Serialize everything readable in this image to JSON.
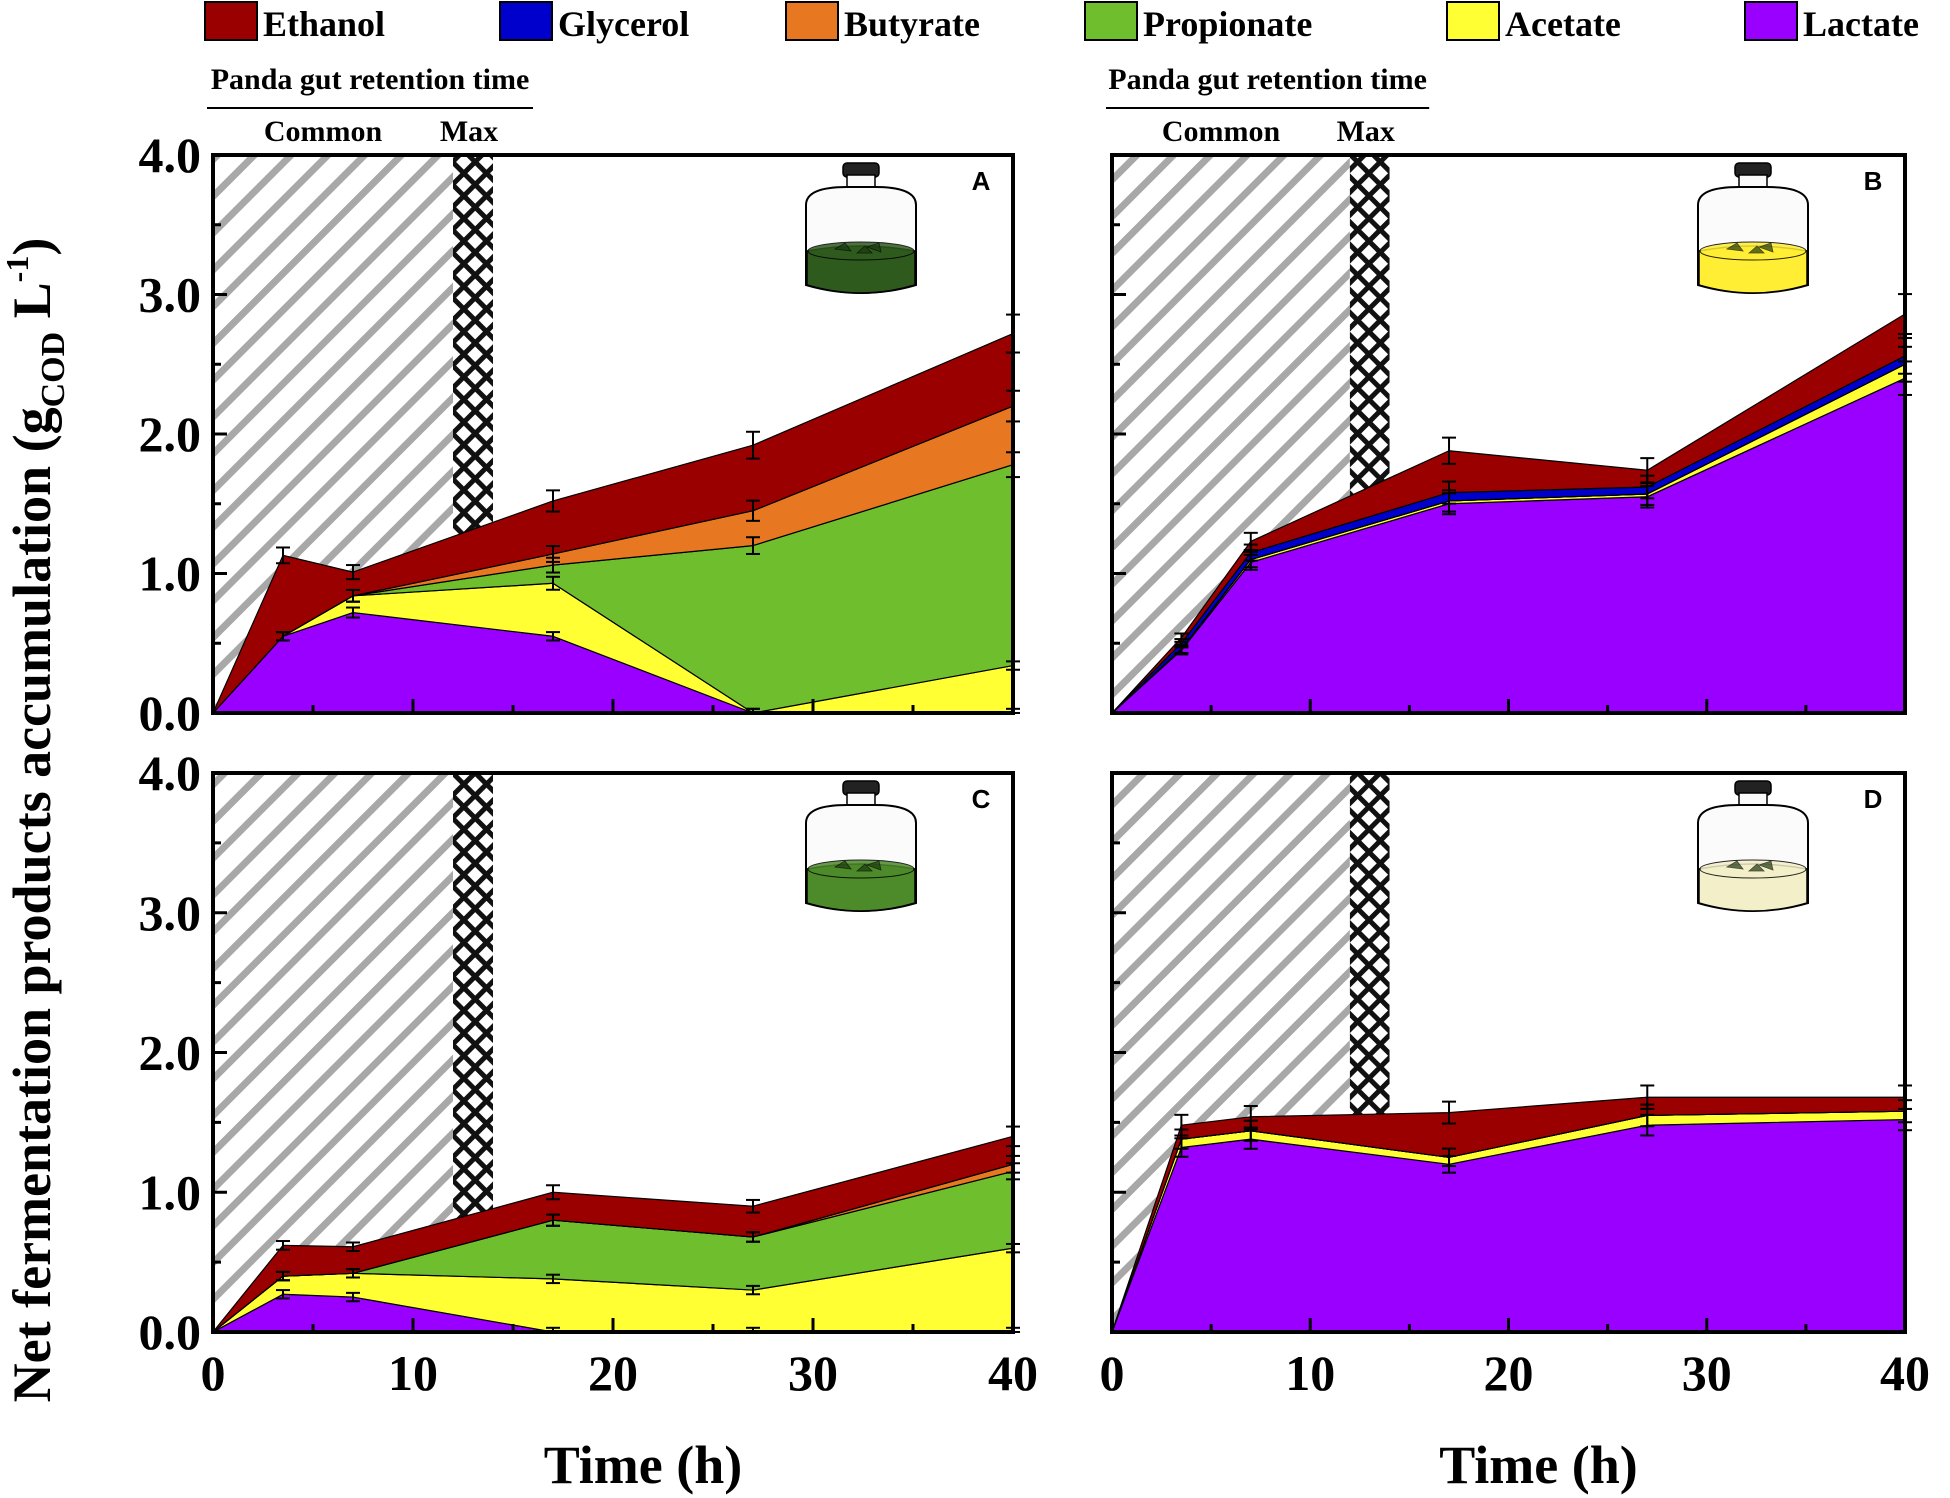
{
  "chart_data": {
    "type": "area",
    "stacked": true,
    "ylabel_main": "Net fermentation products accumulation (g",
    "ylabel_sub": "COD",
    "ylabel_unit": " L",
    "ylabel_sup": "-1",
    "ylabel_close": ")",
    "xlabel": "Time (h)",
    "xlim": [
      0,
      40
    ],
    "ylim": [
      0,
      4
    ],
    "x_ticks": [
      "0",
      "10",
      "20",
      "30",
      "40"
    ],
    "y_ticks": [
      "0.0",
      "1.0",
      "2.0",
      "3.0",
      "4.0"
    ],
    "retention": {
      "title": "Panda gut retention  time",
      "common_label": "Common",
      "max_label": "Max",
      "common_range": [
        0,
        12
      ],
      "max_range": [
        12,
        14
      ]
    },
    "x": [
      0,
      3.5,
      7,
      17,
      27,
      40
    ],
    "legend": [
      {
        "name": "Ethanol",
        "color": "#9b0000"
      },
      {
        "name": "Glycerol",
        "color": "#0000cc"
      },
      {
        "name": "Butyrate",
        "color": "#e87722"
      },
      {
        "name": "Propionate",
        "color": "#6fbe2e"
      },
      {
        "name": "Acetate",
        "color": "#ffff33"
      },
      {
        "name": "Lactate",
        "color": "#9900ff"
      }
    ],
    "panels": [
      {
        "label": "A",
        "jar_color": "#2e5a1e",
        "series": [
          {
            "name": "Lactate",
            "values": [
              0,
              0.55,
              0.72,
              0.55,
              0.0,
              0.0
            ]
          },
          {
            "name": "Acetate",
            "values": [
              0,
              0.0,
              0.12,
              0.38,
              0.0,
              0.34
            ]
          },
          {
            "name": "Propionate",
            "values": [
              0,
              0.0,
              0.0,
              0.13,
              1.2,
              1.44
            ]
          },
          {
            "name": "Butyrate",
            "values": [
              0,
              0.0,
              0.0,
              0.08,
              0.25,
              0.42
            ]
          },
          {
            "name": "Glycerol",
            "values": [
              0,
              0.0,
              0.0,
              0.0,
              0.0,
              0.0
            ]
          },
          {
            "name": "Ethanol",
            "values": [
              0,
              0.58,
              0.17,
              0.38,
              0.47,
              0.52
            ]
          }
        ]
      },
      {
        "label": "B",
        "jar_color": "#ffee33",
        "series": [
          {
            "name": "Lactate",
            "values": [
              0,
              0.45,
              1.08,
              1.5,
              1.55,
              2.4
            ]
          },
          {
            "name": "Acetate",
            "values": [
              0,
              0.01,
              0.02,
              0.02,
              0.02,
              0.1
            ]
          },
          {
            "name": "Propionate",
            "values": [
              0,
              0.0,
              0.0,
              0.0,
              0.0,
              0.0
            ]
          },
          {
            "name": "Butyrate",
            "values": [
              0,
              0.0,
              0.0,
              0.0,
              0.0,
              0.0
            ]
          },
          {
            "name": "Glycerol",
            "values": [
              0,
              0.04,
              0.05,
              0.06,
              0.05,
              0.06
            ]
          },
          {
            "name": "Ethanol",
            "values": [
              0,
              0.04,
              0.08,
              0.3,
              0.12,
              0.3
            ]
          }
        ]
      },
      {
        "label": "C",
        "jar_color": "#4d8a2a",
        "series": [
          {
            "name": "Lactate",
            "values": [
              0,
              0.27,
              0.25,
              0.0,
              0.0,
              0.0
            ]
          },
          {
            "name": "Acetate",
            "values": [
              0,
              0.13,
              0.17,
              0.38,
              0.3,
              0.6
            ]
          },
          {
            "name": "Propionate",
            "values": [
              0,
              0.0,
              0.0,
              0.42,
              0.38,
              0.55
            ]
          },
          {
            "name": "Butyrate",
            "values": [
              0,
              0.0,
              0.0,
              0.0,
              0.0,
              0.05
            ]
          },
          {
            "name": "Glycerol",
            "values": [
              0,
              0.0,
              0.0,
              0.0,
              0.0,
              0.0
            ]
          },
          {
            "name": "Ethanol",
            "values": [
              0,
              0.22,
              0.19,
              0.2,
              0.22,
              0.2
            ]
          }
        ]
      },
      {
        "label": "D",
        "jar_color": "#f3efc8",
        "series": [
          {
            "name": "Lactate",
            "values": [
              0,
              1.32,
              1.38,
              1.2,
              1.48,
              1.52
            ]
          },
          {
            "name": "Acetate",
            "values": [
              0,
              0.06,
              0.06,
              0.05,
              0.07,
              0.06
            ]
          },
          {
            "name": "Propionate",
            "values": [
              0,
              0.0,
              0.0,
              0.0,
              0.0,
              0.0
            ]
          },
          {
            "name": "Butyrate",
            "values": [
              0,
              0.0,
              0.0,
              0.0,
              0.0,
              0.0
            ]
          },
          {
            "name": "Glycerol",
            "values": [
              0,
              0.0,
              0.0,
              0.0,
              0.0,
              0.0
            ]
          },
          {
            "name": "Ethanol",
            "values": [
              0,
              0.1,
              0.1,
              0.32,
              0.13,
              0.1
            ]
          }
        ]
      }
    ]
  }
}
